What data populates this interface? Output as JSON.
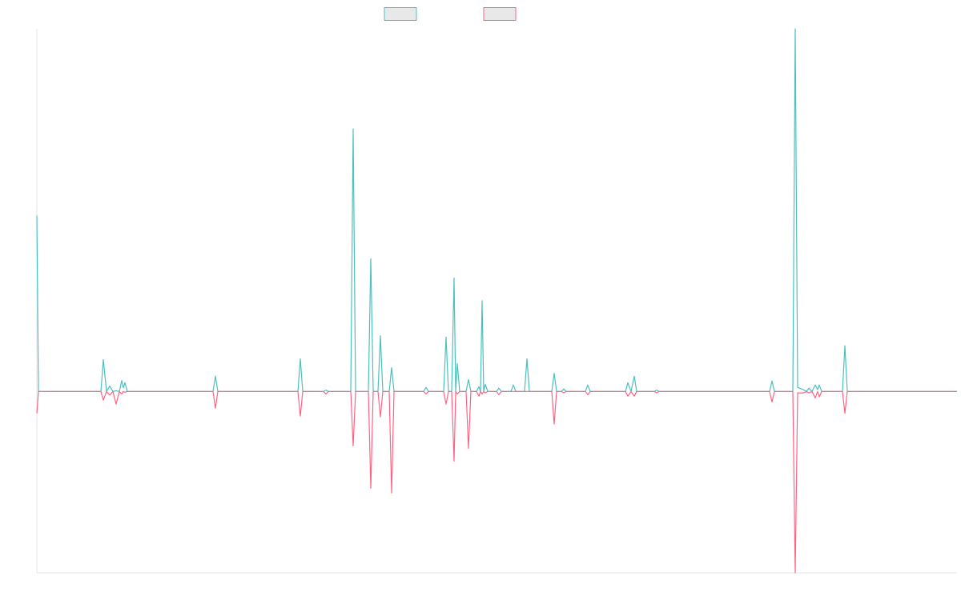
{
  "chart_data": {
    "type": "line",
    "xlim": [
      0,
      1149
    ],
    "ylim": [
      -50,
      100
    ],
    "x": [
      0,
      2,
      80,
      83,
      87,
      91,
      95,
      99,
      103,
      106,
      108,
      110,
      113,
      220,
      223,
      226,
      326,
      329,
      332,
      358,
      361,
      364,
      392,
      395,
      398,
      414,
      417,
      420,
      426,
      429,
      432,
      440,
      443,
      446,
      483,
      486,
      489,
      508,
      511,
      514,
      518,
      521,
      523,
      525,
      528,
      536,
      539,
      542,
      549,
      552,
      554,
      556,
      558,
      560,
      563,
      574,
      577,
      580,
      592,
      595,
      598,
      609,
      612,
      615,
      643,
      646,
      649,
      655,
      658,
      661,
      685,
      688,
      691,
      735,
      738,
      742,
      746,
      749,
      771,
      774,
      777,
      915,
      918,
      921,
      944,
      947,
      950,
      957,
      961,
      964,
      968,
      972,
      975,
      977,
      980,
      1006,
      1009,
      1012,
      1149
    ],
    "series": [
      {
        "color": "#4bc0c0",
        "values": [
          48.5,
          0,
          0,
          8.8,
          0,
          1.5,
          0,
          0.2,
          0,
          3,
          1,
          2.4,
          0,
          0,
          4.2,
          0,
          0,
          9,
          0,
          0,
          0.4,
          0,
          0,
          72.4,
          0,
          0,
          36.6,
          0,
          0,
          15.4,
          0,
          0,
          6.6,
          0,
          0,
          1.1,
          0,
          0,
          15,
          0,
          0,
          31.3,
          0,
          7.7,
          0,
          0,
          3.3,
          0,
          0,
          1.3,
          0,
          25,
          0,
          2,
          0,
          0,
          0.9,
          0,
          0,
          1.8,
          0,
          0,
          9,
          0,
          0,
          5,
          0,
          0,
          0.7,
          0,
          0,
          1.8,
          0,
          0,
          2.4,
          0,
          4.2,
          0,
          0,
          0.4,
          0,
          0,
          2.9,
          0,
          0,
          100,
          1.1,
          0.5,
          0,
          0.9,
          0,
          1.8,
          0.5,
          1.8,
          0,
          0,
          12.6,
          0,
          0
        ]
      },
      {
        "color": "#ff6384",
        "values": [
          -6,
          0,
          0,
          -2.4,
          0,
          -1,
          0,
          -3.5,
          0,
          -0.7,
          0,
          -0.2,
          0,
          0,
          -4.6,
          0,
          0,
          -6.8,
          0,
          0,
          -0.7,
          0,
          0,
          -15,
          0,
          0,
          -26.7,
          0,
          0,
          -7,
          0,
          0,
          -28,
          0,
          0,
          -0.7,
          0,
          0,
          -3.5,
          0,
          0,
          -19.2,
          0,
          -0.7,
          0,
          0,
          -15.7,
          0,
          0,
          -1.3,
          0,
          -0.7,
          0,
          -0.4,
          0,
          0,
          -0.9,
          0,
          0,
          0,
          0,
          0,
          0,
          0,
          0,
          -9,
          0,
          0,
          -0.4,
          0,
          0,
          -0.9,
          0,
          0,
          -1.3,
          0,
          -1.3,
          0,
          0,
          -0.4,
          0,
          0,
          -2.9,
          0,
          0,
          -50,
          -0.4,
          -0.4,
          0,
          -0.4,
          0,
          -1.8,
          0,
          -1.5,
          0,
          0,
          -6,
          0,
          0
        ]
      }
    ]
  }
}
